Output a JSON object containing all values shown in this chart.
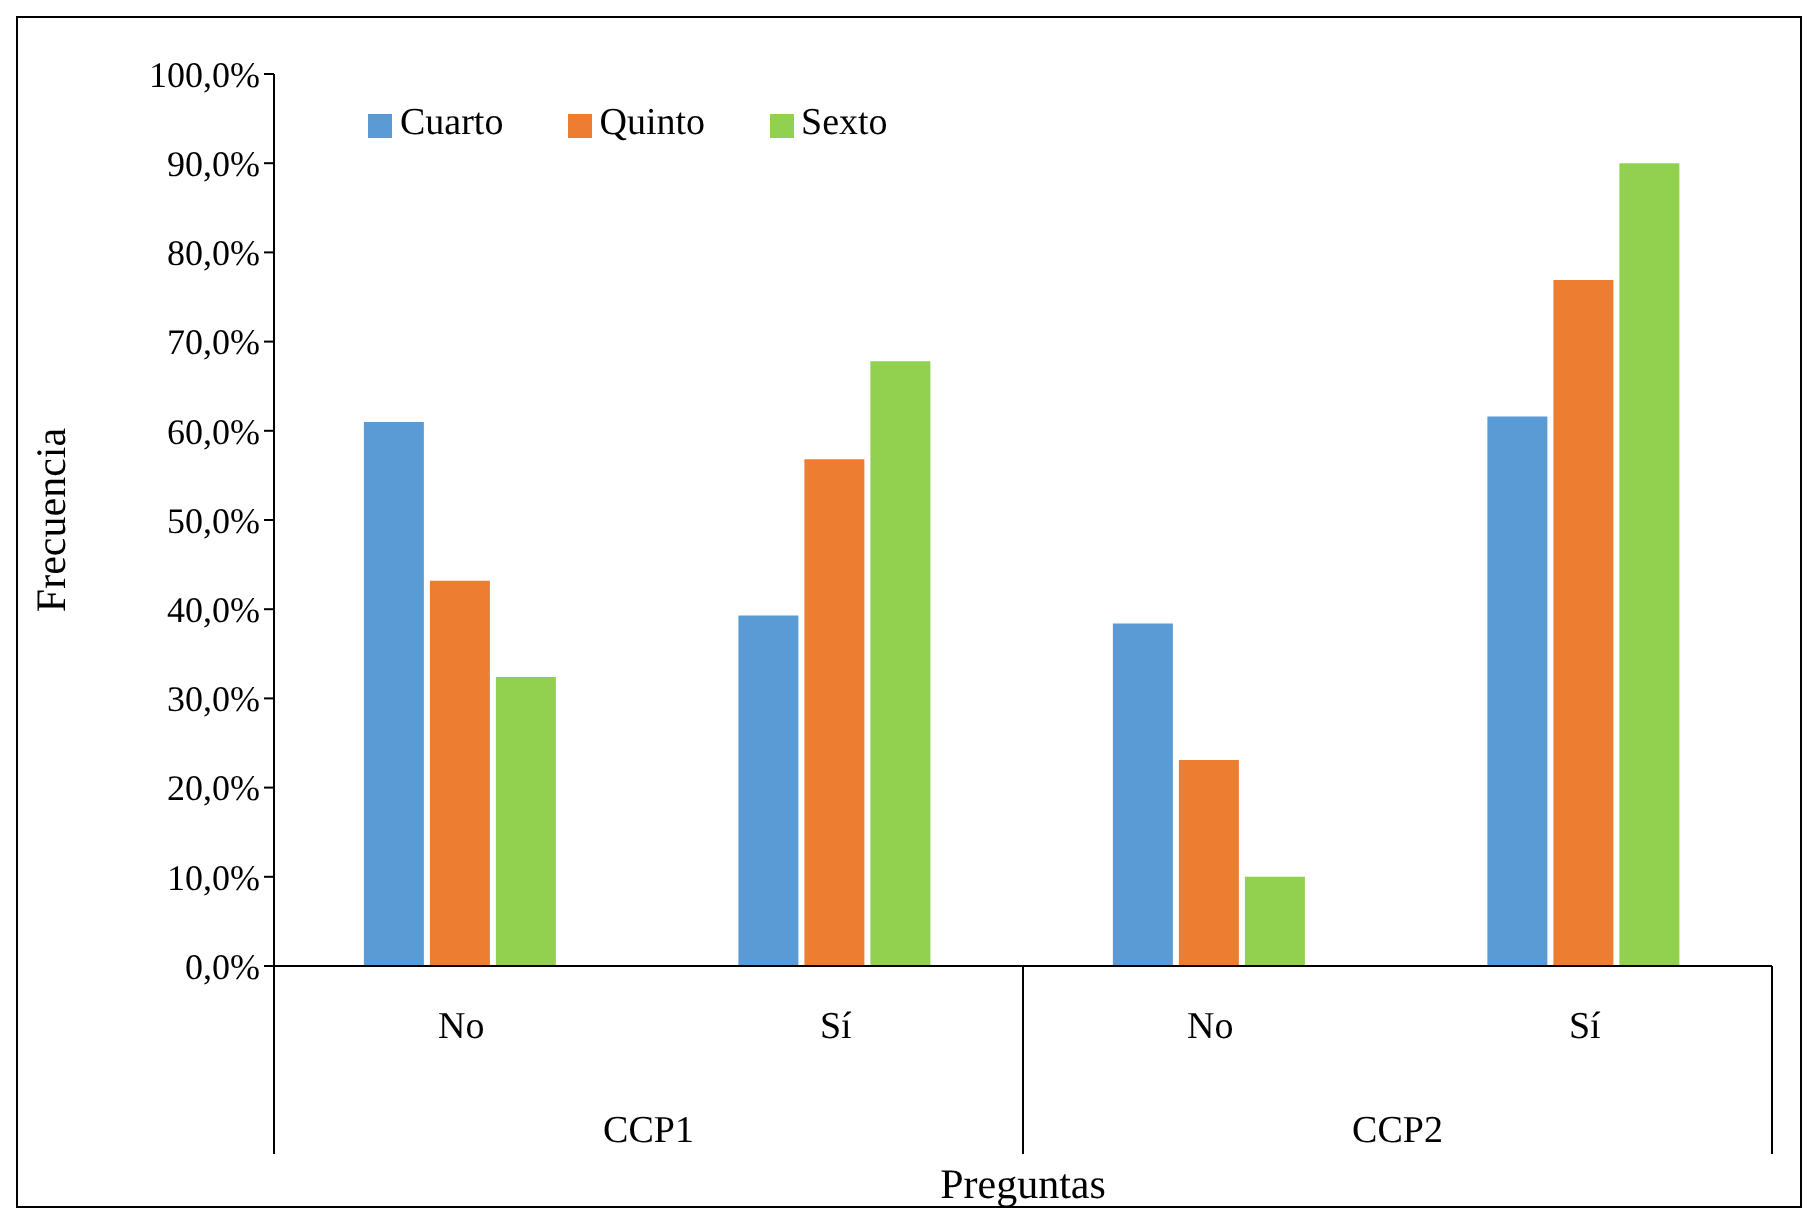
{
  "chart_data": {
    "type": "bar",
    "xlabel": "Preguntas",
    "ylabel": "Frecuencia",
    "categories": [
      "No",
      "Sí",
      "No",
      "Sí"
    ],
    "annotations": [
      "CCP1",
      "CCP2"
    ],
    "series": [
      {
        "name": "Cuarto",
        "color": "#5b9bd5",
        "values": [
          61.0,
          39.3,
          38.4,
          61.6
        ]
      },
      {
        "name": "Quinto",
        "color": "#ed7d31",
        "values": [
          43.2,
          56.8,
          23.1,
          76.9
        ]
      },
      {
        "name": "Sexto",
        "color": "#92d050",
        "values": [
          32.4,
          67.8,
          10.0,
          90.0
        ]
      }
    ],
    "ylim": [
      0,
      100
    ],
    "yticks": [
      {
        "value": 0,
        "label": "0,0%"
      },
      {
        "value": 10,
        "label": "10,0%"
      },
      {
        "value": 20,
        "label": "20,0%"
      },
      {
        "value": 30,
        "label": "30,0%"
      },
      {
        "value": 40,
        "label": "40,0%"
      },
      {
        "value": 50,
        "label": "50,0%"
      },
      {
        "value": 60,
        "label": "60,0%"
      },
      {
        "value": 70,
        "label": "70,0%"
      },
      {
        "value": 80,
        "label": "80,0%"
      },
      {
        "value": 90,
        "label": "90,0%"
      },
      {
        "value": 100,
        "label": "100,0%"
      }
    ],
    "grid": false,
    "legend": "top left"
  }
}
